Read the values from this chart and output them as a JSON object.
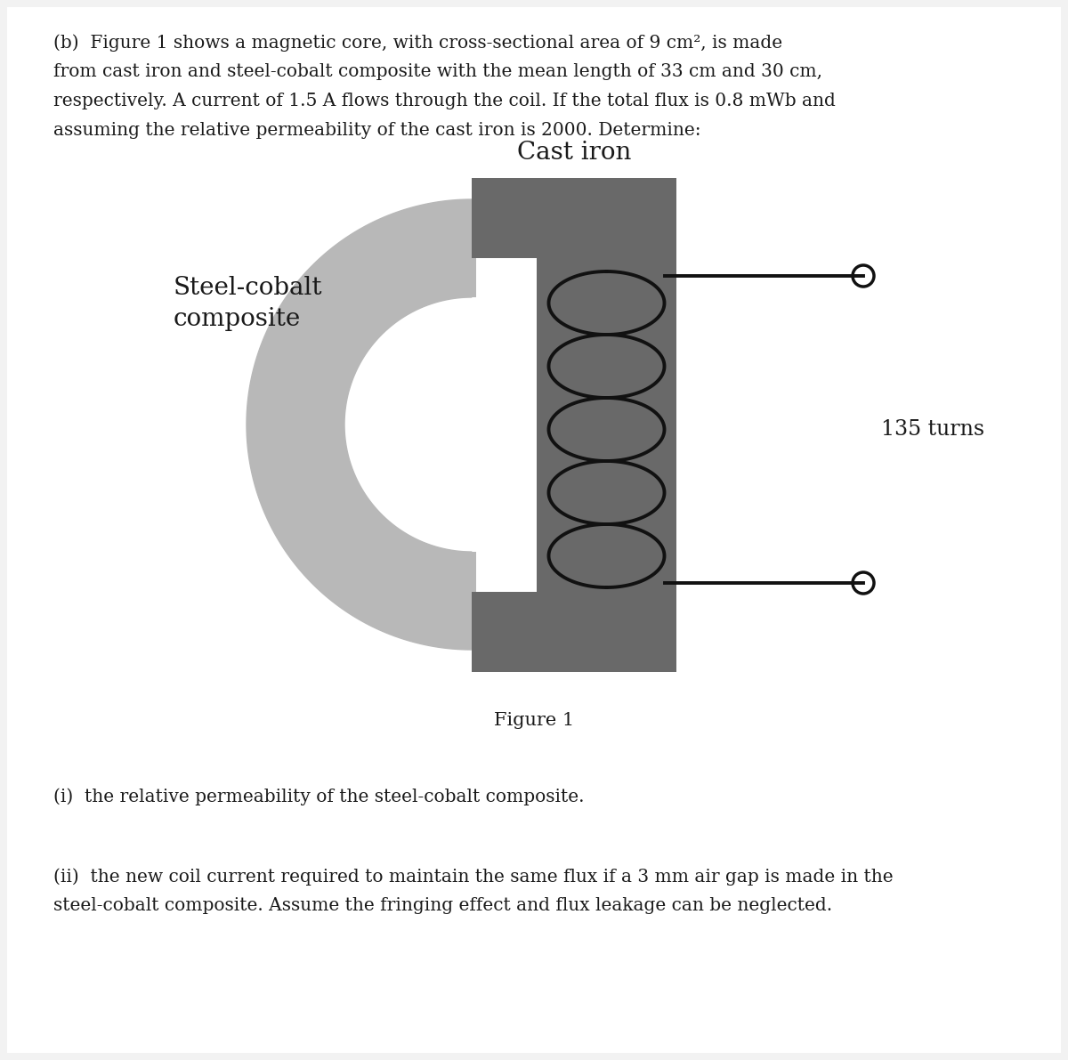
{
  "bg_color": "#ffffff",
  "text_color": "#1a1a1a",
  "paragraph_text_line1": "(b)  Figure 1 shows a magnetic core, with cross-sectional area of 9 cm², is made",
  "paragraph_text_line2": "from cast iron and steel-cobalt composite with the mean length of 33 cm and 30 cm,",
  "paragraph_text_line3": "respectively. A current of 1.5 A flows through the coil. If the total flux is 0.8 mWb and",
  "paragraph_text_line4": "assuming the relative permeability of the cast iron is 2000. Determine:",
  "figure_caption": "Figure 1",
  "cast_iron_label": "Cast iron",
  "steel_cobalt_label1": "Steel-cobalt",
  "steel_cobalt_label2": "composite",
  "coil_label": "135 turns",
  "question_i": "(i)  the relative permeability of the steel-cobalt composite.",
  "question_ii_line1": "(ii)  the new coil current required to maintain the same flux if a 3 mm air gap is made in the",
  "question_ii_line2": "steel-cobalt composite. Assume the fringing effect and flux leakage can be neglected.",
  "cast_iron_color": "#696969",
  "steel_cobalt_color": "#b8b8b8",
  "coil_color": "#111111",
  "wire_color": "#111111",
  "page_bg": "#f0f0f0"
}
